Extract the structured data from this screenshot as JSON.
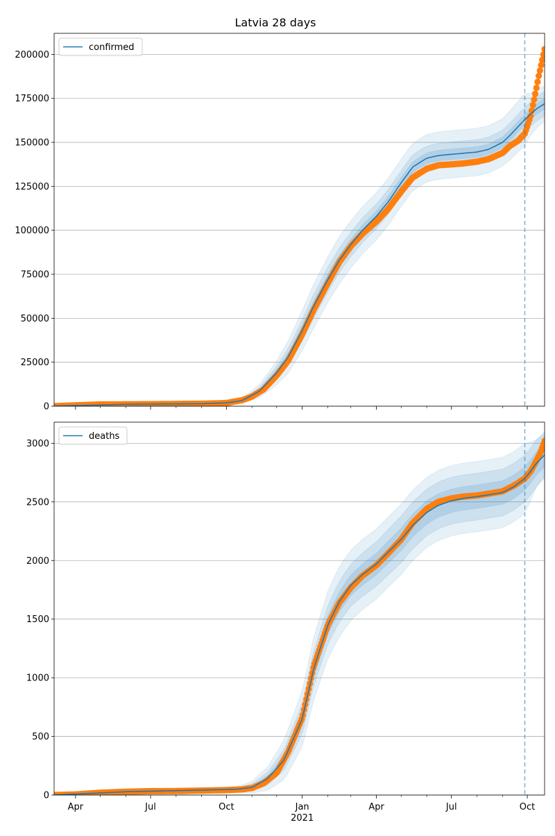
{
  "title": "Latvia 28 days",
  "chart_data": [
    {
      "type": "line",
      "name": "confirmed-panel",
      "legend": {
        "position": "top-left",
        "label": "confirmed"
      },
      "x_range": [
        "2020-03-06",
        "2021-10-22"
      ],
      "ylim": [
        0,
        212000
      ],
      "y_ticks": [
        0,
        25000,
        50000,
        75000,
        100000,
        125000,
        150000,
        175000,
        200000
      ],
      "y_tick_labels": [
        "0",
        "25000",
        "50000",
        "75000",
        "100000",
        "125000",
        "150000",
        "175000",
        "200000"
      ],
      "grid": "horizontal",
      "forecast_start": "2021-09-28",
      "model_line_color": "#1f77b4",
      "observed_color": "#ff7f0e",
      "band_color": "#1f77b4",
      "model": {
        "x": [
          "2020-03-06",
          "2020-06-01",
          "2020-09-01",
          "2020-10-01",
          "2020-10-20",
          "2020-11-10",
          "2020-12-01",
          "2020-12-15",
          "2021-01-01",
          "2021-01-15",
          "2021-02-01",
          "2021-02-15",
          "2021-03-01",
          "2021-03-15",
          "2021-04-01",
          "2021-04-15",
          "2021-05-01",
          "2021-05-15",
          "2021-06-01",
          "2021-06-15",
          "2021-07-01",
          "2021-07-15",
          "2021-08-01",
          "2021-08-15",
          "2021-09-01",
          "2021-09-10",
          "2021-09-20",
          "2021-09-28",
          "2021-10-05",
          "2021-10-12",
          "2021-10-22"
        ],
        "y": [
          0,
          1100,
          1400,
          1900,
          3200,
          8500,
          19000,
          28000,
          43000,
          57000,
          72000,
          83000,
          92000,
          100000,
          108000,
          116000,
          127000,
          136000,
          141000,
          142500,
          143200,
          143800,
          144500,
          146000,
          150000,
          154000,
          159000,
          163000,
          166000,
          169000,
          172000
        ],
        "band_inner": [
          0,
          10,
          20,
          100,
          300,
          900,
          1800,
          2300,
          2800,
          2900,
          3000,
          3000,
          3000,
          3000,
          3000,
          3000,
          3000,
          3000,
          3000,
          3000,
          3000,
          3000,
          3000,
          3000,
          3000,
          3000,
          3000,
          3000,
          3000,
          3000,
          3000
        ],
        "band_mid": [
          0,
          20,
          50,
          250,
          700,
          2000,
          3800,
          5000,
          6200,
          6800,
          7000,
          7000,
          7000,
          7000,
          7000,
          7000,
          7000,
          7000,
          7000,
          7000,
          7000,
          7000,
          7000,
          7000,
          7000,
          7000,
          7000,
          7000,
          7000,
          7000,
          7000
        ],
        "band_outer": [
          0,
          30,
          100,
          500,
          1300,
          3800,
          6800,
          9200,
          11500,
          12500,
          13000,
          13500,
          13500,
          13500,
          13500,
          13500,
          13500,
          13500,
          13500,
          13500,
          13500,
          13500,
          13500,
          13500,
          13500,
          14000,
          14500,
          14800,
          12000,
          11000,
          10000
        ]
      },
      "observed": {
        "x": [
          "2020-03-06",
          "2020-04-01",
          "2020-05-01",
          "2020-06-01",
          "2020-07-01",
          "2020-08-01",
          "2020-09-01",
          "2020-10-01",
          "2020-10-10",
          "2020-10-20",
          "2020-11-01",
          "2020-11-15",
          "2020-12-01",
          "2020-12-15",
          "2021-01-01",
          "2021-01-15",
          "2021-02-01",
          "2021-02-15",
          "2021-03-01",
          "2021-03-15",
          "2021-04-01",
          "2021-04-15",
          "2021-05-01",
          "2021-05-15",
          "2021-06-01",
          "2021-06-15",
          "2021-07-01",
          "2021-07-15",
          "2021-08-01",
          "2021-08-15",
          "2021-09-01",
          "2021-09-10",
          "2021-09-20",
          "2021-09-28",
          "2021-10-05",
          "2021-10-10",
          "2021-10-15",
          "2021-10-22"
        ],
        "y": [
          0,
          500,
          1000,
          1100,
          1150,
          1300,
          1400,
          1800,
          2600,
          3400,
          5500,
          9500,
          17500,
          26000,
          41000,
          55000,
          70000,
          82000,
          91000,
          98000,
          105000,
          112000,
          122000,
          130000,
          135000,
          137000,
          137500,
          138000,
          139000,
          140500,
          144000,
          148000,
          151000,
          155000,
          165000,
          176000,
          188000,
          203000
        ]
      }
    },
    {
      "type": "line",
      "name": "deaths-panel",
      "legend": {
        "position": "top-left",
        "label": "deaths"
      },
      "x_range": [
        "2020-03-06",
        "2021-10-22"
      ],
      "ylim": [
        0,
        3180
      ],
      "y_ticks": [
        0,
        500,
        1000,
        1500,
        2000,
        2500,
        3000
      ],
      "y_tick_labels": [
        "0",
        "500",
        "1000",
        "1500",
        "2000",
        "2500",
        "3000"
      ],
      "x_ticks": [
        "2020-04-01",
        "2020-07-01",
        "2020-10-01",
        "2021-01-01",
        "2021-04-01",
        "2021-07-01",
        "2021-10-01"
      ],
      "x_tick_labels": [
        "Apr",
        "Jul",
        "Oct",
        "Jan",
        "Apr",
        "Jul",
        "Oct"
      ],
      "x_minor_ticks": [
        "2020-03-01",
        "2020-05-01",
        "2020-06-01",
        "2020-08-01",
        "2020-09-01",
        "2020-11-01",
        "2020-12-01",
        "2021-02-01",
        "2021-03-01",
        "2021-05-01",
        "2021-06-01",
        "2021-08-01",
        "2021-09-01"
      ],
      "x_year_label": "2021",
      "grid": "horizontal",
      "forecast_start": "2021-09-28",
      "model_line_color": "#1f77b4",
      "observed_color": "#ff7f0e",
      "band_color": "#1f77b4",
      "model": {
        "x": [
          "2020-03-06",
          "2020-06-01",
          "2020-09-01",
          "2020-10-15",
          "2020-11-01",
          "2020-11-20",
          "2020-12-10",
          "2021-01-01",
          "2021-01-15",
          "2021-02-01",
          "2021-02-15",
          "2021-03-01",
          "2021-03-15",
          "2021-04-01",
          "2021-04-15",
          "2021-05-01",
          "2021-05-15",
          "2021-06-01",
          "2021-06-15",
          "2021-07-01",
          "2021-07-15",
          "2021-08-01",
          "2021-08-15",
          "2021-09-01",
          "2021-09-15",
          "2021-09-28",
          "2021-10-05",
          "2021-10-12",
          "2021-10-22"
        ],
        "y": [
          0,
          28,
          42,
          50,
          65,
          140,
          300,
          650,
          1080,
          1450,
          1650,
          1790,
          1880,
          1970,
          2070,
          2180,
          2300,
          2410,
          2470,
          2510,
          2530,
          2545,
          2560,
          2580,
          2630,
          2700,
          2760,
          2830,
          2900
        ],
        "band_inner": [
          0,
          2,
          4,
          8,
          15,
          25,
          40,
          60,
          70,
          80,
          85,
          88,
          90,
          92,
          94,
          96,
          98,
          100,
          100,
          100,
          100,
          100,
          100,
          100,
          100,
          100,
          100,
          100,
          100
        ],
        "band_mid": [
          0,
          3,
          7,
          15,
          30,
          55,
          90,
          130,
          150,
          165,
          175,
          180,
          185,
          190,
          195,
          200,
          200,
          200,
          200,
          200,
          200,
          200,
          200,
          200,
          200,
          200,
          200,
          200,
          200
        ],
        "band_outer": [
          0,
          5,
          12,
          25,
          50,
          100,
          170,
          240,
          270,
          290,
          300,
          300,
          300,
          300,
          300,
          300,
          300,
          300,
          300,
          300,
          300,
          300,
          300,
          300,
          300,
          300,
          250,
          200,
          180
        ]
      },
      "observed": {
        "x": [
          "2020-03-06",
          "2020-04-01",
          "2020-05-01",
          "2020-06-01",
          "2020-07-01",
          "2020-08-01",
          "2020-09-01",
          "2020-10-01",
          "2020-10-20",
          "2020-11-01",
          "2020-11-15",
          "2020-12-01",
          "2020-12-15",
          "2021-01-01",
          "2021-01-15",
          "2021-02-01",
          "2021-02-15",
          "2021-03-01",
          "2021-03-15",
          "2021-04-01",
          "2021-04-15",
          "2021-05-01",
          "2021-05-15",
          "2021-06-01",
          "2021-06-15",
          "2021-07-01",
          "2021-07-15",
          "2021-08-01",
          "2021-08-15",
          "2021-09-01",
          "2021-09-15",
          "2021-09-28",
          "2021-10-05",
          "2021-10-12",
          "2021-10-17",
          "2021-10-22"
        ],
        "y": [
          0,
          5,
          20,
          28,
          33,
          34,
          38,
          42,
          48,
          60,
          100,
          190,
          370,
          660,
          1100,
          1450,
          1640,
          1770,
          1870,
          1960,
          2060,
          2180,
          2320,
          2440,
          2500,
          2530,
          2545,
          2555,
          2570,
          2590,
          2640,
          2700,
          2760,
          2850,
          2920,
          3020
        ]
      }
    }
  ]
}
